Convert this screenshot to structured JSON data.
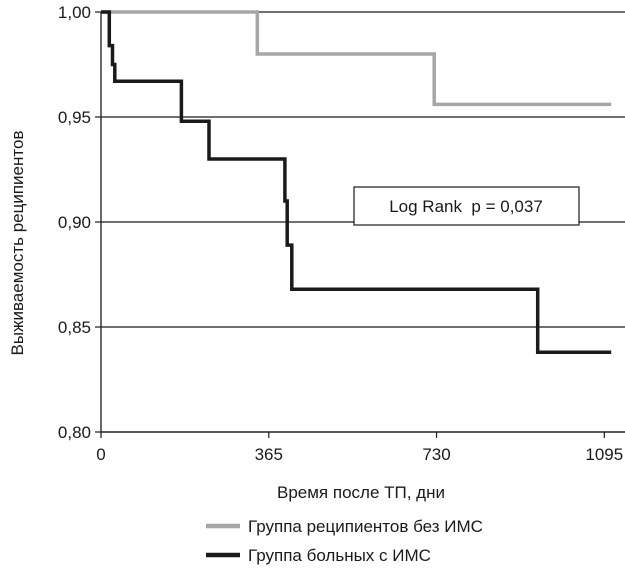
{
  "chart_data": {
    "type": "line",
    "step": true,
    "title": "",
    "xlabel": "Время после ТП, дни",
    "ylabel": "Выживаемость реципиентов",
    "xlim": [
      0,
      1140
    ],
    "ylim": [
      0.8,
      1.0
    ],
    "xticks": [
      0,
      365,
      730,
      1095
    ],
    "xtick_labels": [
      "0",
      "365",
      "730",
      "1095"
    ],
    "yticks": [
      0.8,
      0.85,
      0.9,
      0.95,
      1.0
    ],
    "ytick_labels": [
      "0,80",
      "0,85",
      "0,90",
      "0,95",
      "1,00"
    ],
    "grid": "horizontal",
    "legend_position": "bottom",
    "annotation": "Log Rank  p = 0,037",
    "series": [
      {
        "name": "Группа реципиентов без ИМС",
        "color": "#a6a6a6",
        "x": [
          0,
          340,
          340,
          725,
          725,
          1110
        ],
        "y": [
          1.0,
          1.0,
          0.98,
          0.98,
          0.956,
          0.956
        ]
      },
      {
        "name": "Группа больных с ИМС",
        "color": "#1a1a1a",
        "x": [
          0,
          18,
          18,
          25,
          25,
          30,
          30,
          175,
          175,
          235,
          235,
          400,
          400,
          405,
          405,
          415,
          415,
          950,
          950,
          1110
        ],
        "y": [
          1.0,
          1.0,
          0.984,
          0.984,
          0.975,
          0.975,
          0.967,
          0.967,
          0.948,
          0.948,
          0.93,
          0.93,
          0.91,
          0.91,
          0.889,
          0.889,
          0.868,
          0.868,
          0.838,
          0.838
        ]
      }
    ]
  }
}
